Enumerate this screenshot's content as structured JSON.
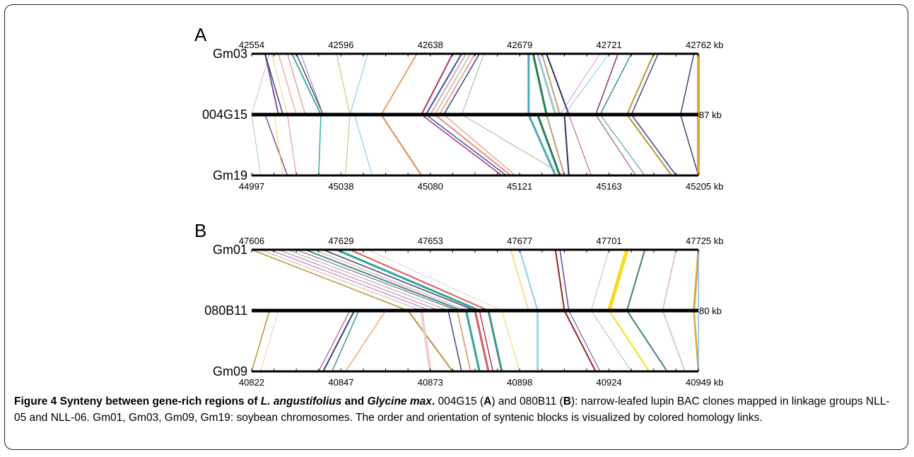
{
  "panels": [
    {
      "letter": "A",
      "top": {
        "name": "Gm03",
        "ticks": [
          "42554",
          "42596",
          "42638",
          "42679",
          "42721",
          "42762 kb"
        ]
      },
      "mid": {
        "name": "004G15",
        "end": "87 kb"
      },
      "bot": {
        "name": "Gm19",
        "ticks": [
          "44997",
          "45038",
          "45080",
          "45121",
          "45163",
          "45205 kb"
        ]
      },
      "links": [
        {
          "t": 0.02,
          "m": 0.0,
          "c": "#9bd29b",
          "w": 1,
          "side": "bot"
        },
        {
          "t": 0.04,
          "m": 0.0,
          "c": "#c8b4d6",
          "w": 1,
          "side": "top"
        },
        {
          "t": 0.03,
          "m": 0.06,
          "c": "#6b3f8a",
          "w": 2,
          "side": "top"
        },
        {
          "t": 0.03,
          "m": 0.07,
          "c": "#2e2e7a",
          "w": 1.5,
          "side": "top"
        },
        {
          "t": 0.045,
          "m": 0.08,
          "c": "#e8d25a",
          "w": 1,
          "side": "top"
        },
        {
          "t": 0.06,
          "m": 0.1,
          "c": "#f0a0a0",
          "w": 1.5,
          "side": "top"
        },
        {
          "t": 0.08,
          "m": 0.12,
          "c": "#d06a6a",
          "w": 1,
          "side": "top"
        },
        {
          "t": 0.09,
          "m": 0.155,
          "c": "#26a59a",
          "w": 2,
          "side": "top"
        },
        {
          "t": 0.1,
          "m": 0.16,
          "c": "#333366",
          "w": 1.5,
          "side": "top"
        },
        {
          "t": 0.11,
          "m": 0.16,
          "c": "#9b5fb0",
          "w": 1,
          "side": "top"
        },
        {
          "t": 0.19,
          "m": 0.22,
          "c": "#a8b860",
          "w": 1,
          "side": "top"
        },
        {
          "t": 0.26,
          "m": 0.22,
          "c": "#5fc0d8",
          "w": 1,
          "side": "top"
        },
        {
          "t": 0.37,
          "m": 0.29,
          "c": "#e07820",
          "w": 1.5,
          "side": "top"
        },
        {
          "t": 0.45,
          "m": 0.38,
          "c": "#a0205a",
          "w": 2,
          "side": "top"
        },
        {
          "t": 0.47,
          "m": 0.39,
          "c": "#2040a0",
          "w": 2,
          "side": "top"
        },
        {
          "t": 0.48,
          "m": 0.4,
          "c": "#e0a0a0",
          "w": 2,
          "side": "top"
        },
        {
          "t": 0.49,
          "m": 0.41,
          "c": "#b0b0b0",
          "w": 1.5,
          "side": "top"
        },
        {
          "t": 0.5,
          "m": 0.42,
          "c": "#f08060",
          "w": 1.5,
          "side": "top"
        },
        {
          "t": 0.51,
          "m": 0.43,
          "c": "#203070",
          "w": 1.5,
          "side": "top"
        },
        {
          "t": 0.52,
          "m": 0.47,
          "c": "#88aa88",
          "w": 1,
          "side": "top"
        },
        {
          "t": 0.62,
          "m": 0.62,
          "c": "#3aa0b0",
          "w": 3,
          "side": "top"
        },
        {
          "t": 0.63,
          "m": 0.66,
          "c": "#107040",
          "w": 3,
          "side": "top"
        },
        {
          "t": 0.64,
          "m": 0.68,
          "c": "#90c0d0",
          "w": 3,
          "side": "top"
        },
        {
          "t": 0.65,
          "m": 0.69,
          "c": "#c09060",
          "w": 2,
          "side": "top"
        },
        {
          "t": 0.66,
          "m": 0.71,
          "c": "#1a1a50",
          "w": 2,
          "side": "top"
        },
        {
          "t": 0.78,
          "m": 0.69,
          "c": "#e080e0",
          "w": 1,
          "side": "top"
        },
        {
          "t": 0.8,
          "m": 0.7,
          "c": "#70c8d0",
          "w": 1,
          "side": "top"
        },
        {
          "t": 0.82,
          "m": 0.77,
          "c": "#7a2060",
          "w": 1.5,
          "side": "top"
        },
        {
          "t": 0.85,
          "m": 0.78,
          "c": "#208a80",
          "w": 1.5,
          "side": "top"
        },
        {
          "t": 0.9,
          "m": 0.84,
          "c": "#b08820",
          "w": 2,
          "side": "top"
        },
        {
          "t": 0.91,
          "m": 0.85,
          "c": "#303090",
          "w": 1.5,
          "side": "top"
        },
        {
          "t": 0.99,
          "m": 0.96,
          "c": "#303070",
          "w": 1.5,
          "side": "top"
        },
        {
          "t": 1.0,
          "m": 1.0,
          "c": "#d8a020",
          "w": 4,
          "side": "top"
        },
        {
          "t": 0.08,
          "m": 0.03,
          "c": "#6b3f8a",
          "w": 1.5,
          "side": "bot"
        },
        {
          "t": 0.07,
          "m": 0.05,
          "c": "#e8d25a",
          "w": 1,
          "side": "bot"
        },
        {
          "t": 0.1,
          "m": 0.08,
          "c": "#f0a0a0",
          "w": 1.5,
          "side": "bot"
        },
        {
          "t": 0.15,
          "m": 0.155,
          "c": "#26a59a",
          "w": 1.5,
          "side": "bot"
        },
        {
          "t": 0.21,
          "m": 0.22,
          "c": "#a8b860",
          "w": 1,
          "side": "bot"
        },
        {
          "t": 0.27,
          "m": 0.23,
          "c": "#5fc0d8",
          "w": 1,
          "side": "bot"
        },
        {
          "t": 0.38,
          "m": 0.29,
          "c": "#e07820",
          "w": 2,
          "side": "bot"
        },
        {
          "t": 0.56,
          "m": 0.38,
          "c": "#a0205a",
          "w": 1.5,
          "side": "bot"
        },
        {
          "t": 0.57,
          "m": 0.39,
          "c": "#2040a0",
          "w": 1.5,
          "side": "bot"
        },
        {
          "t": 0.58,
          "m": 0.41,
          "c": "#f08060",
          "w": 2,
          "side": "bot"
        },
        {
          "t": 0.59,
          "m": 0.43,
          "c": "#e0a0a0",
          "w": 1.5,
          "side": "bot"
        },
        {
          "t": 0.7,
          "m": 0.47,
          "c": "#88aa88",
          "w": 1,
          "side": "bot"
        },
        {
          "t": 0.68,
          "m": 0.62,
          "c": "#3aa0b0",
          "w": 3,
          "side": "bot"
        },
        {
          "t": 0.69,
          "m": 0.64,
          "c": "#107040",
          "w": 3,
          "side": "bot"
        },
        {
          "t": 0.7,
          "m": 0.66,
          "c": "#c09060",
          "w": 2,
          "side": "bot"
        },
        {
          "t": 0.71,
          "m": 0.7,
          "c": "#1a1a50",
          "w": 2,
          "side": "bot"
        },
        {
          "t": 0.76,
          "m": 0.71,
          "c": "#b03070",
          "w": 1,
          "side": "bot"
        },
        {
          "t": 0.86,
          "m": 0.77,
          "c": "#7a2060",
          "w": 1,
          "side": "bot"
        },
        {
          "t": 0.88,
          "m": 0.78,
          "c": "#208a80",
          "w": 1,
          "side": "bot"
        },
        {
          "t": 0.94,
          "m": 0.84,
          "c": "#b08820",
          "w": 2,
          "side": "bot"
        },
        {
          "t": 0.95,
          "m": 0.85,
          "c": "#303090",
          "w": 1.5,
          "side": "bot"
        },
        {
          "t": 1.0,
          "m": 0.96,
          "c": "#303070",
          "w": 1.5,
          "side": "bot"
        },
        {
          "t": 1.0,
          "m": 1.0,
          "c": "#d8a020",
          "w": 4,
          "side": "bot"
        }
      ]
    },
    {
      "letter": "B",
      "top": {
        "name": "Gm01",
        "ticks": [
          "47606",
          "47629",
          "47653",
          "47677",
          "47701",
          "47725 kb"
        ]
      },
      "mid": {
        "name": "080B11",
        "end": "80 kb"
      },
      "bot": {
        "name": "Gm09",
        "ticks": [
          "40822",
          "40847",
          "40873",
          "40898",
          "40924",
          "40949 kb"
        ]
      },
      "links": [
        {
          "t": 0.0,
          "m": 0.35,
          "c": "#b08820",
          "w": 1.5,
          "side": "top"
        },
        {
          "t": 0.02,
          "m": 0.38,
          "c": "#e0a0a0",
          "w": 1,
          "side": "top"
        },
        {
          "t": 0.04,
          "m": 0.4,
          "c": "#9b5fb0",
          "w": 1,
          "side": "top"
        },
        {
          "t": 0.06,
          "m": 0.42,
          "c": "#c06090",
          "w": 1,
          "side": "top"
        },
        {
          "t": 0.08,
          "m": 0.44,
          "c": "#a0a0a0",
          "w": 1,
          "side": "top"
        },
        {
          "t": 0.1,
          "m": 0.46,
          "c": "#6b3f8a",
          "w": 1,
          "side": "top"
        },
        {
          "t": 0.12,
          "m": 0.47,
          "c": "#2e8a70",
          "w": 2,
          "side": "top"
        },
        {
          "t": 0.14,
          "m": 0.48,
          "c": "#f0c0c0",
          "w": 2,
          "side": "top"
        },
        {
          "t": 0.16,
          "m": 0.5,
          "c": "#303070",
          "w": 1.5,
          "side": "top"
        },
        {
          "t": 0.19,
          "m": 0.51,
          "c": "#1a9a8a",
          "w": 3,
          "side": "top"
        },
        {
          "t": 0.22,
          "m": 0.53,
          "c": "#d04a4a",
          "w": 2,
          "side": "top"
        },
        {
          "t": 0.26,
          "m": 0.56,
          "c": "#f0c8c8",
          "w": 1,
          "side": "top"
        },
        {
          "t": 0.58,
          "m": 0.62,
          "c": "#f0e080",
          "w": 2,
          "side": "top"
        },
        {
          "t": 0.6,
          "m": 0.64,
          "c": "#80c8e8",
          "w": 2,
          "side": "top"
        },
        {
          "t": 0.68,
          "m": 0.7,
          "c": "#8a1010",
          "w": 2,
          "side": "top"
        },
        {
          "t": 0.69,
          "m": 0.71,
          "c": "#503090",
          "w": 1.5,
          "side": "top"
        },
        {
          "t": 0.8,
          "m": 0.76,
          "c": "#b0b0b0",
          "w": 1,
          "side": "top"
        },
        {
          "t": 0.84,
          "m": 0.8,
          "c": "#f5d800",
          "w": 5,
          "side": "top"
        },
        {
          "t": 0.88,
          "m": 0.84,
          "c": "#2a7a4a",
          "w": 2,
          "side": "top"
        },
        {
          "t": 0.95,
          "m": 0.92,
          "c": "#d0a8d0",
          "w": 1.5,
          "side": "top"
        },
        {
          "t": 1.0,
          "m": 0.99,
          "c": "#d8a020",
          "w": 3,
          "side": "top"
        },
        {
          "t": 1.0,
          "m": 1.0,
          "c": "#70b0e0",
          "w": 1.5,
          "side": "top"
        },
        {
          "t": 0.0,
          "m": 0.04,
          "c": "#b08820",
          "w": 1.5,
          "side": "bot"
        },
        {
          "t": 0.02,
          "m": 0.06,
          "c": "#f0c0c0",
          "w": 1,
          "side": "bot"
        },
        {
          "t": 0.15,
          "m": 0.22,
          "c": "#a0205a",
          "w": 1,
          "side": "bot"
        },
        {
          "t": 0.16,
          "m": 0.23,
          "c": "#203070",
          "w": 2,
          "side": "bot"
        },
        {
          "t": 0.18,
          "m": 0.24,
          "c": "#2e8a70",
          "w": 1.5,
          "side": "bot"
        },
        {
          "t": 0.21,
          "m": 0.3,
          "c": "#f0a060",
          "w": 1.5,
          "side": "bot"
        },
        {
          "t": 0.45,
          "m": 0.35,
          "c": "#b08820",
          "w": 2,
          "side": "bot"
        },
        {
          "t": 0.4,
          "m": 0.38,
          "c": "#f0c8c8",
          "w": 4,
          "side": "bot"
        },
        {
          "t": 0.47,
          "m": 0.44,
          "c": "#303070",
          "w": 1.5,
          "side": "bot"
        },
        {
          "t": 0.49,
          "m": 0.46,
          "c": "#e08040",
          "w": 1.5,
          "side": "bot"
        },
        {
          "t": 0.51,
          "m": 0.48,
          "c": "#1a9a8a",
          "w": 3,
          "side": "bot"
        },
        {
          "t": 0.53,
          "m": 0.5,
          "c": "#d04a4a",
          "w": 3,
          "side": "bot"
        },
        {
          "t": 0.54,
          "m": 0.51,
          "c": "#a0205a",
          "w": 1.5,
          "side": "bot"
        },
        {
          "t": 0.56,
          "m": 0.53,
          "c": "#2a8a7a",
          "w": 3,
          "side": "bot"
        },
        {
          "t": 0.6,
          "m": 0.56,
          "c": "#f0e080",
          "w": 1.5,
          "side": "bot"
        },
        {
          "t": 0.64,
          "m": 0.64,
          "c": "#80c8e8",
          "w": 2.5,
          "side": "bot"
        },
        {
          "t": 0.77,
          "m": 0.7,
          "c": "#8a1010",
          "w": 2,
          "side": "bot"
        },
        {
          "t": 0.78,
          "m": 0.71,
          "c": "#503090",
          "w": 1,
          "side": "bot"
        },
        {
          "t": 0.85,
          "m": 0.76,
          "c": "#b0b0b0",
          "w": 1,
          "side": "bot"
        },
        {
          "t": 0.89,
          "m": 0.8,
          "c": "#f5d800",
          "w": 2,
          "side": "bot"
        },
        {
          "t": 0.93,
          "m": 0.84,
          "c": "#2a7a4a",
          "w": 2,
          "side": "bot"
        },
        {
          "t": 0.97,
          "m": 0.92,
          "c": "#d0a8d0",
          "w": 1.5,
          "side": "bot"
        },
        {
          "t": 1.0,
          "m": 0.99,
          "c": "#d8a020",
          "w": 2.5,
          "side": "bot"
        },
        {
          "t": 1.0,
          "m": 1.0,
          "c": "#70b0e0",
          "w": 1.5,
          "side": "bot"
        }
      ]
    }
  ],
  "caption": {
    "fig": "Figure 4",
    "title_a": " Synteny between gene-rich regions of ",
    "species1": "L. angustifolius",
    "title_b": " and ",
    "species2": "Glycine max",
    "title_c": ".",
    "r1": " 004G15 (",
    "rA": "A",
    "r2": ") and 080B11 (",
    "rB": "B",
    "r3": "): narrow-leafed lupin BAC clones mapped in linkage groups NLL-05 and NLL-06. Gm01, Gm03, Gm09, Gm19: soybean chromosomes. The order and orientation of syntenic blocks is visualized by colored homology links."
  }
}
